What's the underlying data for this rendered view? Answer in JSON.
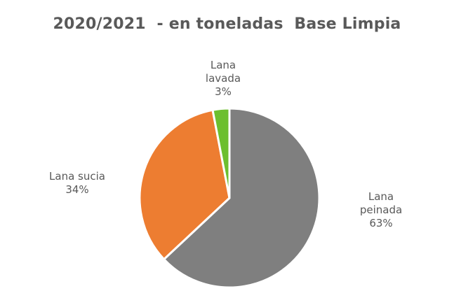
{
  "chart_data": {
    "type": "pie",
    "title": "2020/2021  - en toneladas  Base Limpia",
    "slices": [
      {
        "label_lines": [
          "Lana",
          "peinada"
        ],
        "percent_label": "63%",
        "value": 63,
        "color": "#7f7f7f"
      },
      {
        "label_lines": [
          "Lana sucia"
        ],
        "percent_label": "34%",
        "value": 34,
        "color": "#ed7d31"
      },
      {
        "label_lines": [
          "Lana",
          "lavada"
        ],
        "percent_label": "3%",
        "value": 3,
        "color": "#6cbf2e"
      }
    ],
    "start": "12 o'clock",
    "direction": "clockwise",
    "border_color": "#ffffff",
    "legend": "none"
  }
}
